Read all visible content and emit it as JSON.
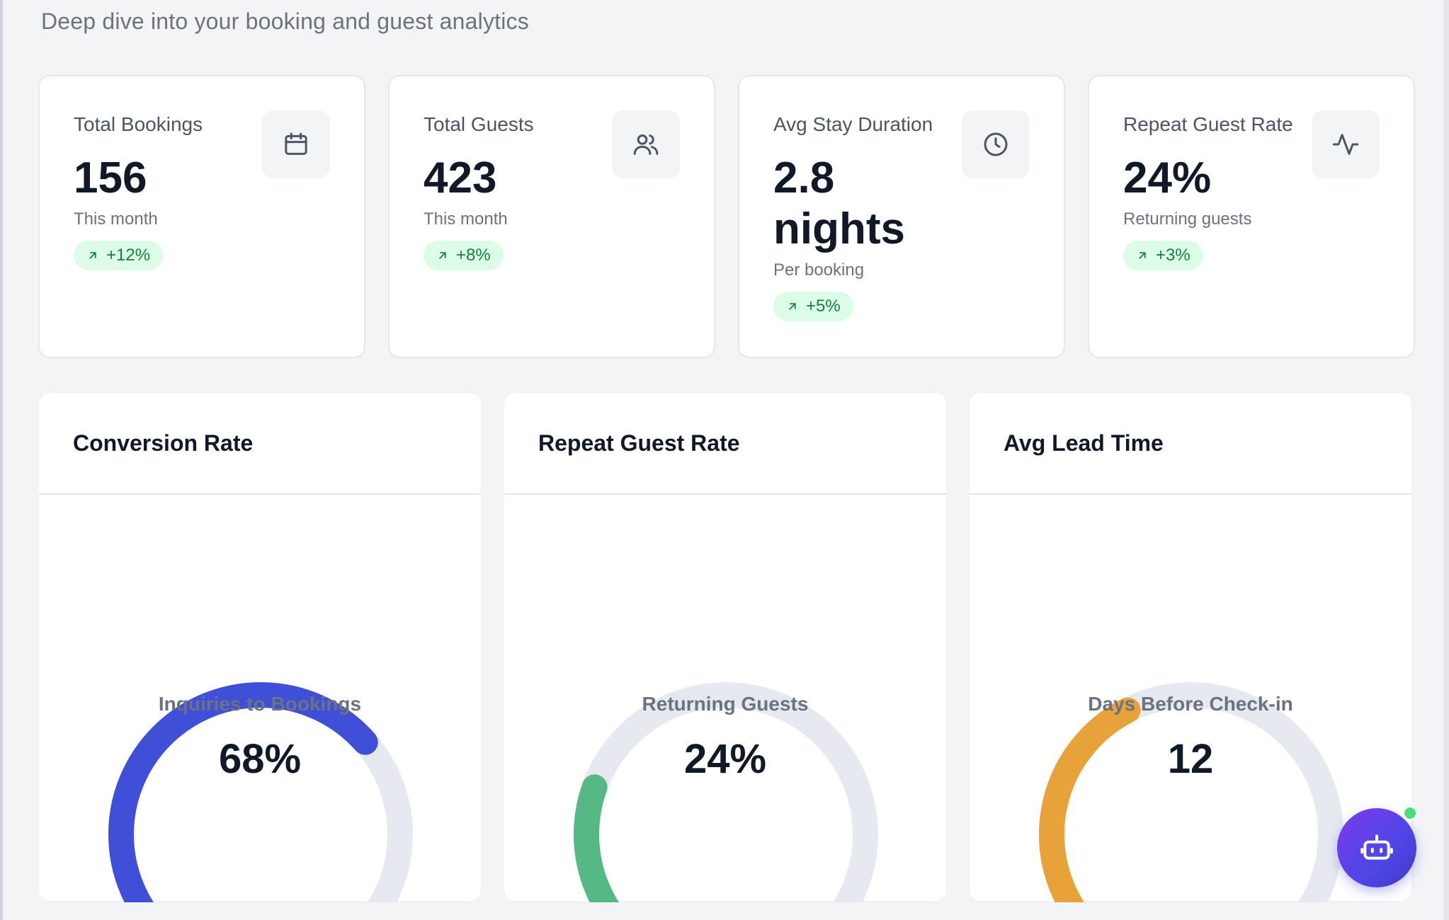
{
  "header": {
    "subtitle": "Deep dive into your booking and guest analytics"
  },
  "stats": [
    {
      "label": "Total Bookings",
      "value": "156",
      "sub": "This month",
      "change": "+12%",
      "icon": "calendar-icon"
    },
    {
      "label": "Total Guests",
      "value": "423",
      "sub": "This month",
      "change": "+8%",
      "icon": "users-icon"
    },
    {
      "label": "Avg Stay Duration",
      "value": "2.8 nights",
      "sub": "Per booking",
      "change": "+5%",
      "icon": "clock-icon"
    },
    {
      "label": "Repeat Guest Rate",
      "value": "24%",
      "sub": "Returning guests",
      "change": "+3%",
      "icon": "activity-icon"
    }
  ],
  "gauges": [
    {
      "title": "Conversion Rate",
      "label": "Inquiries to Bookings",
      "value": "68%",
      "fraction": 0.68,
      "color": "#3f4fd8"
    },
    {
      "title": "Repeat Guest Rate",
      "label": "Returning Guests",
      "value": "24%",
      "fraction": 0.24,
      "color": "#55b885"
    },
    {
      "title": "Avg Lead Time",
      "label": "Days Before Check-in",
      "value": "12",
      "fraction": 0.4,
      "color": "#e8a23a"
    }
  ],
  "colors": {
    "track": "#e7e9f1",
    "badge_bg": "#dcfce7",
    "badge_text": "#15803d",
    "assistant": "#4f46e5"
  },
  "assistant": {
    "icon": "robot-icon"
  }
}
